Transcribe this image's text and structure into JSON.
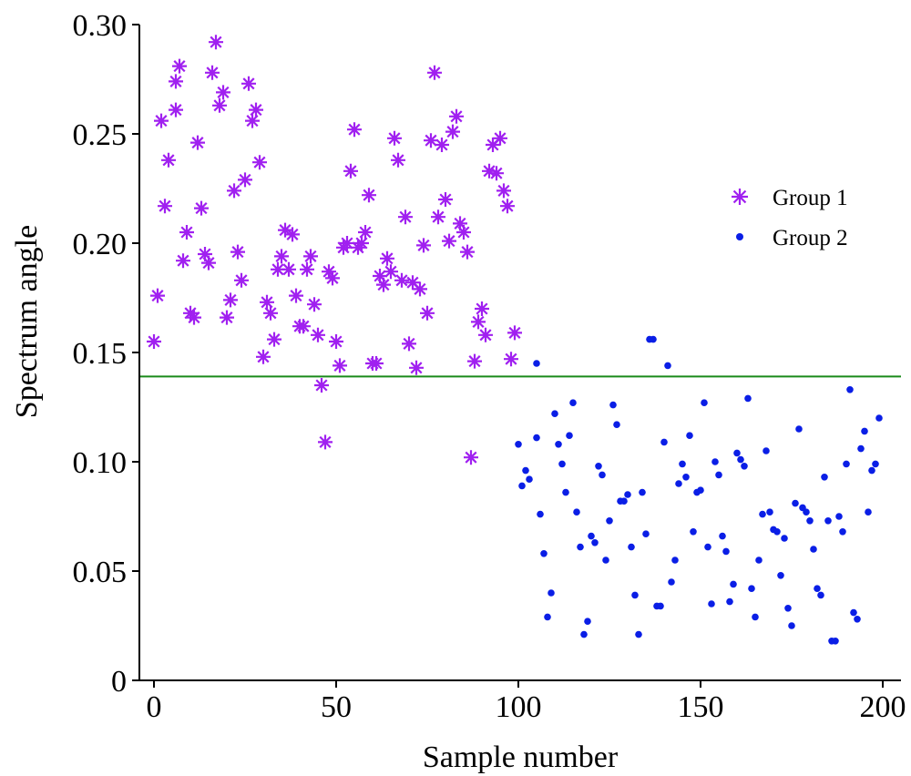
{
  "chart_data": {
    "type": "scatter",
    "xlabel": "Sample number",
    "ylabel": "Spectrum angle",
    "xlim": [
      -4,
      205
    ],
    "ylim": [
      0,
      0.3
    ],
    "xticks": [
      0,
      50,
      100,
      150,
      200
    ],
    "xtick_labels": [
      "0",
      "50",
      "100",
      "150",
      "200"
    ],
    "yticks": [
      0,
      0.05,
      0.1,
      0.15,
      0.2,
      0.25,
      0.3
    ],
    "ytick_labels": [
      "0",
      "0.05",
      "0.10",
      "0.15",
      "0.20",
      "0.25",
      "0.30"
    ],
    "grid": false,
    "legend_position": "right",
    "threshold": {
      "y": 0.139,
      "color": "#1a8a1a"
    },
    "series": [
      {
        "name": "Group 1",
        "marker": "asterisk",
        "color": "#a020f0",
        "points": [
          [
            0,
            0.155
          ],
          [
            1,
            0.176
          ],
          [
            2,
            0.256
          ],
          [
            3,
            0.217
          ],
          [
            4,
            0.238
          ],
          [
            6,
            0.261
          ],
          [
            6,
            0.274
          ],
          [
            7,
            0.281
          ],
          [
            8,
            0.192
          ],
          [
            9,
            0.205
          ],
          [
            10,
            0.168
          ],
          [
            11,
            0.166
          ],
          [
            12,
            0.246
          ],
          [
            13,
            0.216
          ],
          [
            14,
            0.195
          ],
          [
            15,
            0.191
          ],
          [
            16,
            0.278
          ],
          [
            17,
            0.292
          ],
          [
            18,
            0.263
          ],
          [
            19,
            0.269
          ],
          [
            20,
            0.166
          ],
          [
            21,
            0.174
          ],
          [
            22,
            0.224
          ],
          [
            23,
            0.196
          ],
          [
            24,
            0.183
          ],
          [
            25,
            0.229
          ],
          [
            26,
            0.273
          ],
          [
            27,
            0.256
          ],
          [
            28,
            0.261
          ],
          [
            29,
            0.237
          ],
          [
            30,
            0.148
          ],
          [
            31,
            0.173
          ],
          [
            32,
            0.168
          ],
          [
            33,
            0.156
          ],
          [
            34,
            0.188
          ],
          [
            35,
            0.194
          ],
          [
            36,
            0.206
          ],
          [
            37,
            0.188
          ],
          [
            38,
            0.204
          ],
          [
            39,
            0.176
          ],
          [
            40,
            0.162
          ],
          [
            41,
            0.162
          ],
          [
            42,
            0.188
          ],
          [
            43,
            0.194
          ],
          [
            44,
            0.172
          ],
          [
            45,
            0.158
          ],
          [
            46,
            0.135
          ],
          [
            47,
            0.109
          ],
          [
            48,
            0.187
          ],
          [
            49,
            0.184
          ],
          [
            50,
            0.155
          ],
          [
            51,
            0.144
          ],
          [
            52,
            0.198
          ],
          [
            53,
            0.2
          ],
          [
            54,
            0.233
          ],
          [
            55,
            0.252
          ],
          [
            56,
            0.198
          ],
          [
            57,
            0.2
          ],
          [
            58,
            0.205
          ],
          [
            59,
            0.222
          ],
          [
            60,
            0.145
          ],
          [
            61,
            0.145
          ],
          [
            62,
            0.185
          ],
          [
            63,
            0.181
          ],
          [
            64,
            0.193
          ],
          [
            65,
            0.187
          ],
          [
            66,
            0.248
          ],
          [
            67,
            0.238
          ],
          [
            68,
            0.183
          ],
          [
            69,
            0.212
          ],
          [
            70,
            0.154
          ],
          [
            71,
            0.182
          ],
          [
            72,
            0.143
          ],
          [
            73,
            0.179
          ],
          [
            74,
            0.199
          ],
          [
            75,
            0.168
          ],
          [
            76,
            0.247
          ],
          [
            77,
            0.278
          ],
          [
            78,
            0.212
          ],
          [
            79,
            0.245
          ],
          [
            80,
            0.22
          ],
          [
            81,
            0.201
          ],
          [
            82,
            0.251
          ],
          [
            83,
            0.258
          ],
          [
            84,
            0.209
          ],
          [
            85,
            0.205
          ],
          [
            86,
            0.196
          ],
          [
            87,
            0.102
          ],
          [
            88,
            0.146
          ],
          [
            89,
            0.164
          ],
          [
            90,
            0.17
          ],
          [
            91,
            0.158
          ],
          [
            92,
            0.233
          ],
          [
            93,
            0.245
          ],
          [
            94,
            0.232
          ],
          [
            95,
            0.248
          ],
          [
            96,
            0.224
          ],
          [
            97,
            0.217
          ],
          [
            98,
            0.147
          ],
          [
            99,
            0.159
          ]
        ]
      },
      {
        "name": "Group 2",
        "marker": "dot",
        "color": "#0a1ee6",
        "points": [
          [
            100,
            0.108
          ],
          [
            101,
            0.089
          ],
          [
            102,
            0.096
          ],
          [
            103,
            0.092
          ],
          [
            105,
            0.111
          ],
          [
            105,
            0.145
          ],
          [
            106,
            0.076
          ],
          [
            107,
            0.058
          ],
          [
            108,
            0.029
          ],
          [
            109,
            0.04
          ],
          [
            110,
            0.122
          ],
          [
            111,
            0.108
          ],
          [
            112,
            0.099
          ],
          [
            113,
            0.086
          ],
          [
            114,
            0.112
          ],
          [
            115,
            0.127
          ],
          [
            116,
            0.077
          ],
          [
            117,
            0.061
          ],
          [
            118,
            0.021
          ],
          [
            119,
            0.027
          ],
          [
            120,
            0.066
          ],
          [
            121,
            0.063
          ],
          [
            122,
            0.098
          ],
          [
            123,
            0.094
          ],
          [
            124,
            0.055
          ],
          [
            125,
            0.073
          ],
          [
            126,
            0.126
          ],
          [
            127,
            0.117
          ],
          [
            128,
            0.082
          ],
          [
            129,
            0.082
          ],
          [
            130,
            0.085
          ],
          [
            131,
            0.061
          ],
          [
            132,
            0.039
          ],
          [
            133,
            0.021
          ],
          [
            134,
            0.086
          ],
          [
            135,
            0.067
          ],
          [
            136,
            0.156
          ],
          [
            137,
            0.156
          ],
          [
            138,
            0.034
          ],
          [
            139,
            0.034
          ],
          [
            140,
            0.109
          ],
          [
            141,
            0.144
          ],
          [
            142,
            0.045
          ],
          [
            143,
            0.055
          ],
          [
            144,
            0.09
          ],
          [
            145,
            0.099
          ],
          [
            146,
            0.093
          ],
          [
            147,
            0.112
          ],
          [
            148,
            0.068
          ],
          [
            149,
            0.086
          ],
          [
            150,
            0.087
          ],
          [
            151,
            0.127
          ],
          [
            152,
            0.061
          ],
          [
            153,
            0.035
          ],
          [
            154,
            0.1
          ],
          [
            155,
            0.094
          ],
          [
            156,
            0.066
          ],
          [
            157,
            0.059
          ],
          [
            158,
            0.036
          ],
          [
            159,
            0.044
          ],
          [
            160,
            0.104
          ],
          [
            161,
            0.101
          ],
          [
            162,
            0.098
          ],
          [
            163,
            0.129
          ],
          [
            164,
            0.042
          ],
          [
            165,
            0.029
          ],
          [
            166,
            0.055
          ],
          [
            167,
            0.076
          ],
          [
            168,
            0.105
          ],
          [
            169,
            0.077
          ],
          [
            170,
            0.069
          ],
          [
            171,
            0.068
          ],
          [
            172,
            0.048
          ],
          [
            173,
            0.065
          ],
          [
            174,
            0.033
          ],
          [
            175,
            0.025
          ],
          [
            176,
            0.081
          ],
          [
            177,
            0.115
          ],
          [
            178,
            0.079
          ],
          [
            179,
            0.077
          ],
          [
            180,
            0.073
          ],
          [
            181,
            0.06
          ],
          [
            182,
            0.042
          ],
          [
            183,
            0.039
          ],
          [
            184,
            0.093
          ],
          [
            185,
            0.073
          ],
          [
            186,
            0.018
          ],
          [
            187,
            0.018
          ],
          [
            188,
            0.075
          ],
          [
            189,
            0.068
          ],
          [
            190,
            0.099
          ],
          [
            191,
            0.133
          ],
          [
            192,
            0.031
          ],
          [
            193,
            0.028
          ],
          [
            194,
            0.106
          ],
          [
            195,
            0.114
          ],
          [
            196,
            0.077
          ],
          [
            197,
            0.096
          ],
          [
            198,
            0.099
          ],
          [
            199,
            0.12
          ]
        ]
      }
    ]
  }
}
